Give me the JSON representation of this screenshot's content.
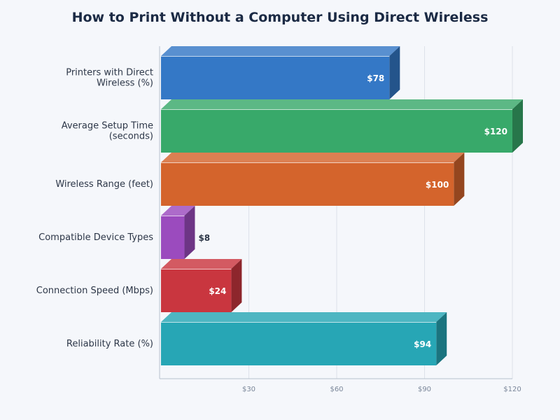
{
  "chart_data": {
    "type": "bar",
    "orientation": "horizontal",
    "title": "How to Print Without a Computer Using Direct Wireless",
    "xlabel": "",
    "ylabel": "",
    "categories": [
      "Printers with Direct Wireless (%)",
      "Average Setup Time (seconds)",
      "Wireless Range (feet)",
      "Compatible Device Types",
      "Connection Speed (Mbps)",
      "Reliability Rate (%)"
    ],
    "values": [
      78,
      120,
      100,
      8,
      24,
      94
    ],
    "value_labels": [
      "$78",
      "$120",
      "$100",
      "$8",
      "$24",
      "$94"
    ],
    "colors": [
      "#3478c6",
      "#38a96a",
      "#d4642c",
      "#9b4bbe",
      "#c9363f",
      "#27a6b5"
    ],
    "xlim": [
      0,
      120
    ],
    "xticks": [
      30,
      60,
      90,
      120
    ],
    "xtick_labels": [
      "$30",
      "$60",
      "$90",
      "$120"
    ],
    "grid": true,
    "style": "3d"
  }
}
